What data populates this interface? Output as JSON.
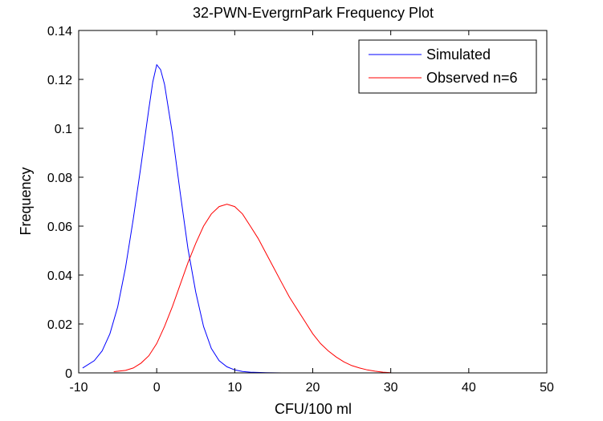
{
  "chart_data": {
    "type": "line",
    "title": "32-PWN-EvergrnPark Frequency Plot",
    "xlabel": "CFU/100 ml",
    "ylabel": "Frequency",
    "xlim": [
      -10,
      50
    ],
    "ylim": [
      0,
      0.14
    ],
    "xticks": [
      -10,
      0,
      10,
      20,
      30,
      40,
      50
    ],
    "xtick_labels": [
      "-10",
      "0",
      "10",
      "20",
      "30",
      "40",
      "50"
    ],
    "yticks": [
      0,
      0.02,
      0.04,
      0.06,
      0.08,
      0.1,
      0.12,
      0.14
    ],
    "ytick_labels": [
      "0",
      "0.02",
      "0.04",
      "0.06",
      "0.08",
      "0.1",
      "0.12",
      "0.14"
    ],
    "grid": false,
    "legend_position": "top-right",
    "series": [
      {
        "name": "Simulated",
        "color": "#0000ff",
        "x": [
          -9.5,
          -8,
          -7,
          -6,
          -5,
          -4,
          -3,
          -2,
          -1,
          -0.5,
          0,
          0.5,
          1,
          2,
          3,
          4,
          5,
          6,
          7,
          8,
          9,
          10,
          11,
          12,
          14,
          16,
          20,
          30,
          40
        ],
        "y": [
          0.002,
          0.005,
          0.009,
          0.016,
          0.027,
          0.043,
          0.063,
          0.085,
          0.108,
          0.119,
          0.126,
          0.124,
          0.118,
          0.098,
          0.074,
          0.051,
          0.033,
          0.019,
          0.01,
          0.005,
          0.0025,
          0.0012,
          0.0006,
          0.0003,
          0.0001,
          0,
          0,
          0,
          0
        ]
      },
      {
        "name": "Observed n=6",
        "color": "#ff0000",
        "x": [
          -5.5,
          -4,
          -3,
          -2,
          -1,
          0,
          1,
          2,
          3,
          4,
          5,
          6,
          7,
          8,
          9,
          10,
          11,
          12,
          13,
          14,
          15,
          16,
          17,
          18,
          19,
          20,
          21,
          22,
          23,
          24,
          25,
          26,
          27,
          28,
          29,
          30
        ],
        "y": [
          0.0005,
          0.001,
          0.002,
          0.004,
          0.007,
          0.012,
          0.019,
          0.027,
          0.036,
          0.045,
          0.053,
          0.06,
          0.065,
          0.068,
          0.069,
          0.068,
          0.065,
          0.06,
          0.055,
          0.049,
          0.043,
          0.037,
          0.031,
          0.026,
          0.021,
          0.016,
          0.012,
          0.009,
          0.0065,
          0.0045,
          0.003,
          0.002,
          0.0012,
          0.0007,
          0.0003,
          0.0001
        ]
      }
    ]
  }
}
